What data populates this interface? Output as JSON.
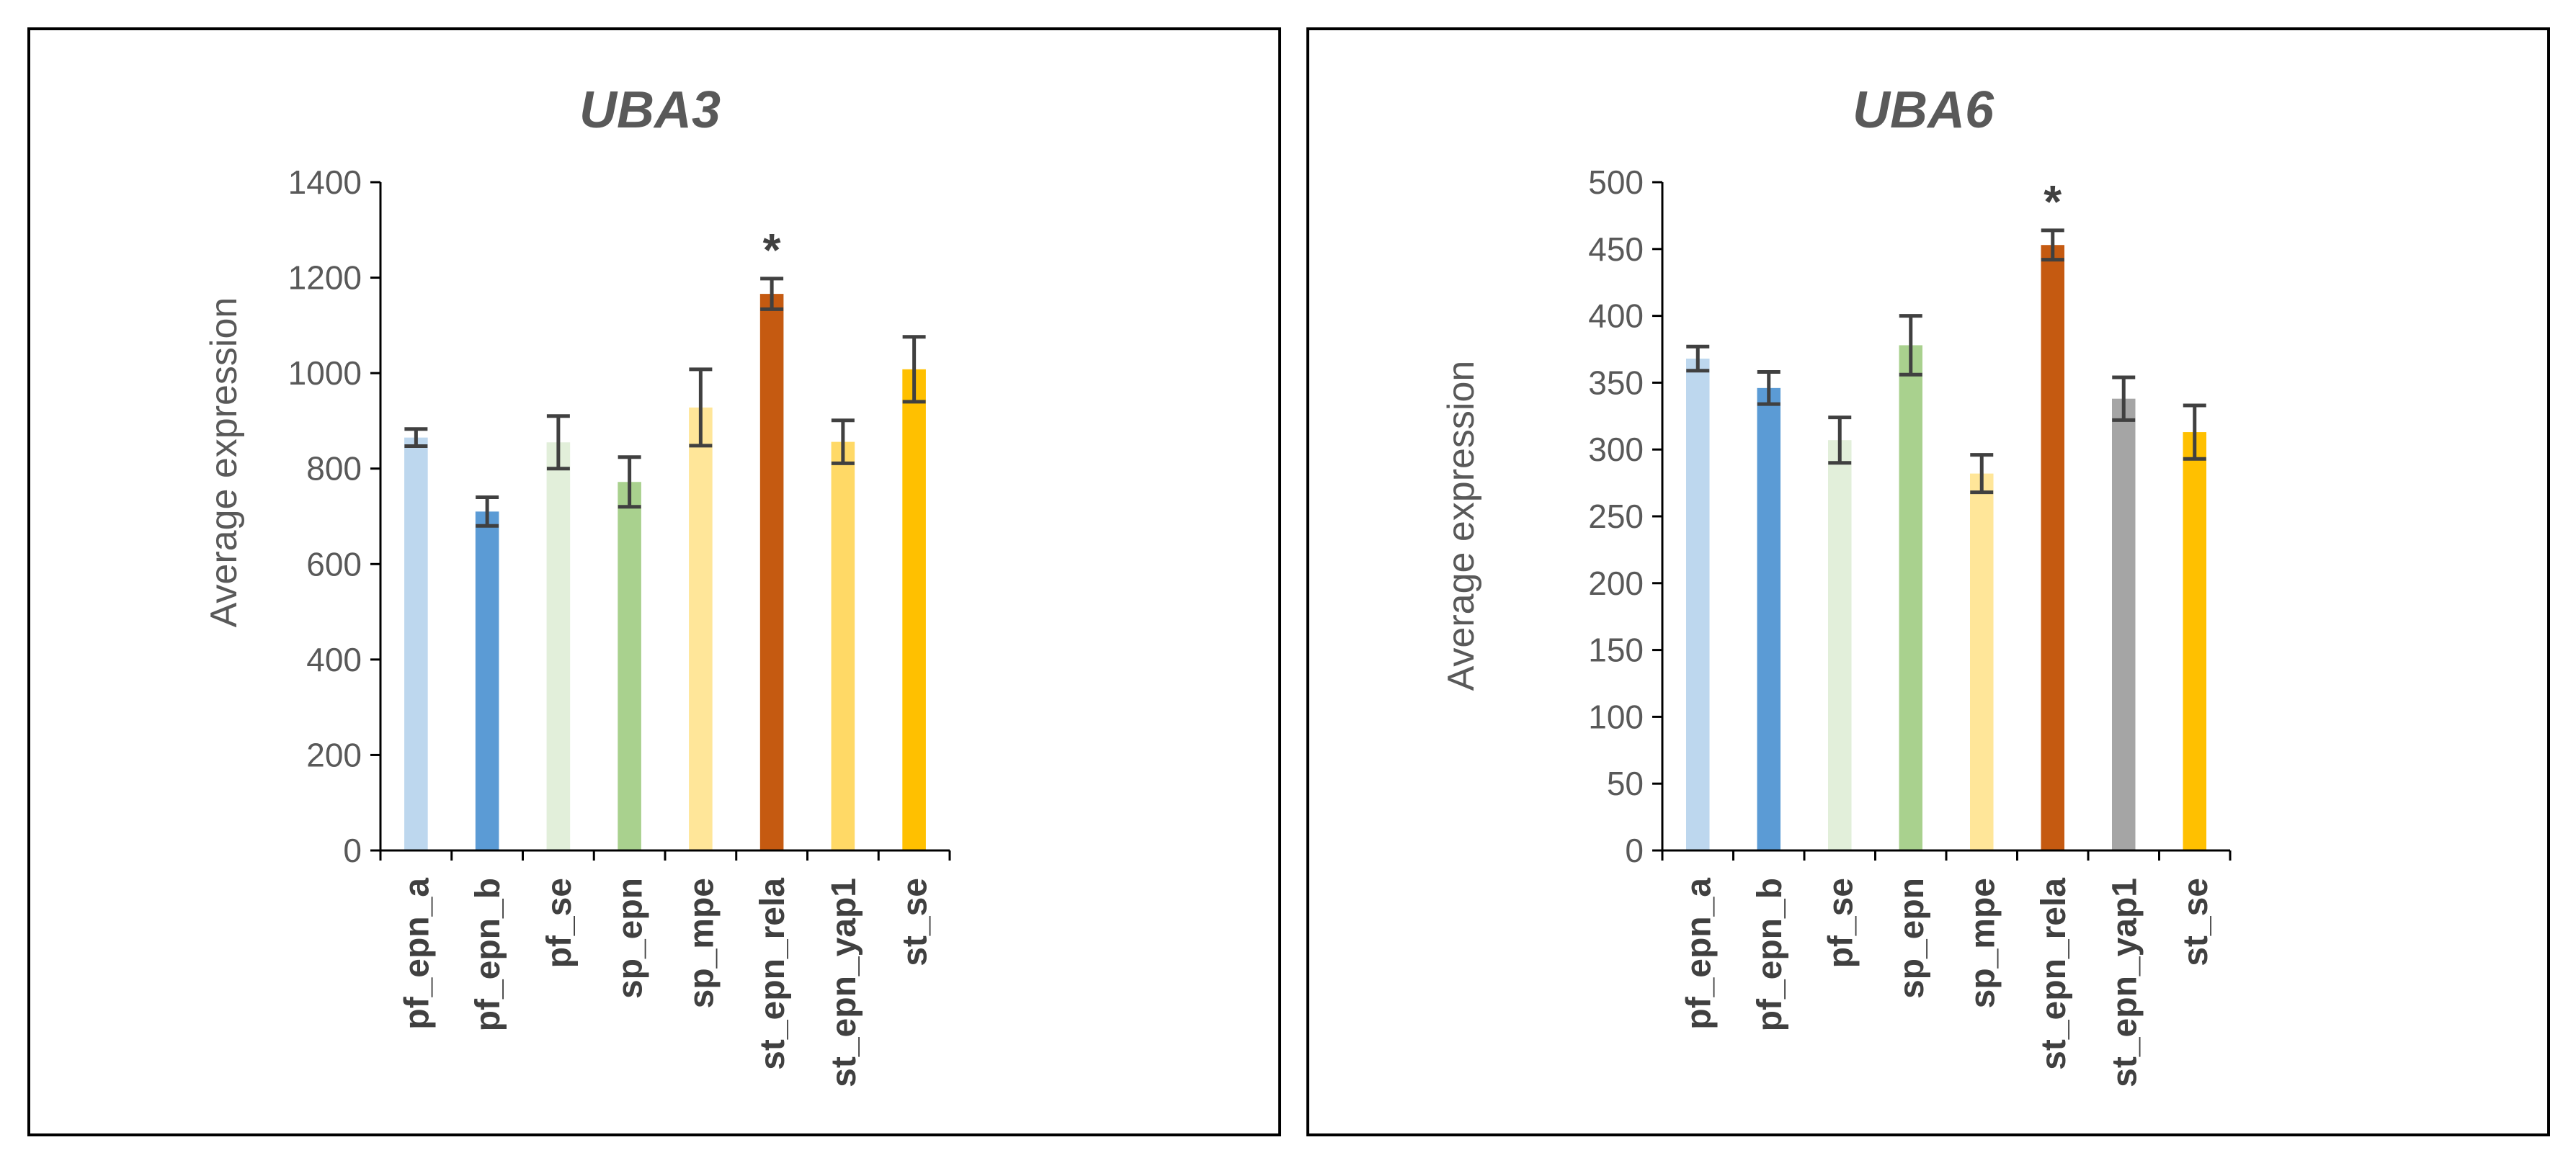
{
  "chart_data": [
    {
      "type": "bar",
      "title": "UBA3",
      "xlabel": "",
      "ylabel": "Average expression",
      "ylim": [
        0,
        1400
      ],
      "yticks": [
        0,
        200,
        400,
        600,
        800,
        1000,
        1200,
        1400
      ],
      "categories": [
        "pf_epn_a",
        "pf_epn_b",
        "pf_se",
        "sp_epn",
        "sp_mpe",
        "st_epn_rela",
        "st_epn_yap1",
        "st_se"
      ],
      "values": [
        865,
        710,
        855,
        772,
        928,
        1166,
        856,
        1008
      ],
      "errors": [
        18,
        30,
        55,
        52,
        80,
        32,
        45,
        68
      ],
      "colors": [
        "#BDD7EE",
        "#5B9BD5",
        "#E2EFDA",
        "#A9D18E",
        "#FFE699",
        "#C55A11",
        "#FFD966",
        "#FFC000"
      ],
      "annotations": [
        {
          "category": "st_epn_rela",
          "text": "*"
        }
      ]
    },
    {
      "type": "bar",
      "title": "UBA6",
      "xlabel": "",
      "ylabel": "Average expression",
      "ylim": [
        0,
        500
      ],
      "yticks": [
        0,
        50,
        100,
        150,
        200,
        250,
        300,
        350,
        400,
        450,
        500
      ],
      "categories": [
        "pf_epn_a",
        "pf_epn_b",
        "pf_se",
        "sp_epn",
        "sp_mpe",
        "st_epn_rela",
        "st_epn_yap1",
        "st_se"
      ],
      "values": [
        368,
        346,
        307,
        378,
        282,
        453,
        338,
        313
      ],
      "errors": [
        9,
        12,
        17,
        22,
        14,
        11,
        16,
        20
      ],
      "colors": [
        "#BDD7EE",
        "#5B9BD5",
        "#E2EFDA",
        "#A9D18E",
        "#FFE699",
        "#C55A11",
        "#A5A5A5",
        "#FFC000"
      ],
      "annotations": [
        {
          "category": "st_epn_rela",
          "text": "*"
        }
      ]
    }
  ]
}
